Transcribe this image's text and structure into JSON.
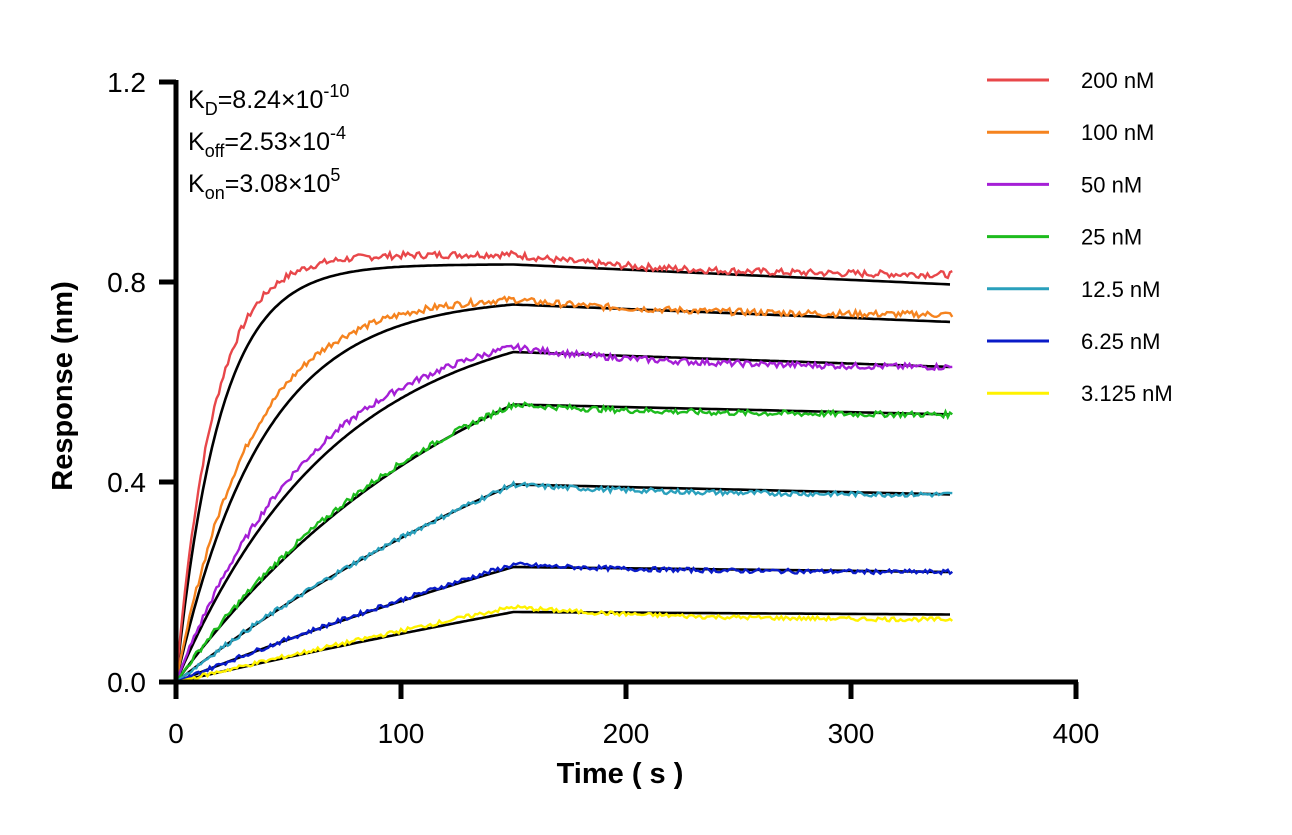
{
  "chart_data": {
    "type": "line",
    "title": "",
    "xlabel": "Time ( s )",
    "ylabel": "Response (nm)",
    "xlim": [
      0,
      400
    ],
    "ylim": [
      0,
      1.2
    ],
    "x_ticks": [
      0,
      100,
      200,
      300,
      400
    ],
    "y_ticks": [
      0.0,
      0.4,
      0.8,
      1.2
    ],
    "x_tick_labels": [
      "0",
      "100",
      "200",
      "300",
      "400"
    ],
    "y_tick_labels": [
      "0.0",
      "0.4",
      "0.8",
      "1.2"
    ],
    "grid": false,
    "legend_position": "right",
    "association_end": 150,
    "dissociation_end": 345,
    "fit_color": "#000000",
    "annotations": {
      "kd": {
        "base": "K",
        "sub": "D",
        "mant": "=8.24×10",
        "exp": "-10"
      },
      "koff": {
        "base": "K",
        "sub": "off",
        "mant": "=2.53×10",
        "exp": "-4"
      },
      "kon": {
        "base": "K",
        "sub": "on",
        "mant": "=3.08×10",
        "exp": "5"
      }
    },
    "series": [
      {
        "name": "200 nM",
        "color": "#E8474A",
        "peak": 0.855,
        "end": 0.815,
        "fit_peak": 0.835,
        "fit_end": 0.795,
        "k": 0.06
      },
      {
        "name": "100 nM",
        "color": "#F5831F",
        "peak": 0.765,
        "end": 0.735,
        "fit_peak": 0.755,
        "fit_end": 0.72,
        "k": 0.03
      },
      {
        "name": "50 nM",
        "color": "#A51FD6",
        "peak": 0.67,
        "end": 0.63,
        "fit_peak": 0.66,
        "fit_end": 0.63,
        "k": 0.016
      },
      {
        "name": "25 nM",
        "color": "#1DBB1D",
        "peak": 0.555,
        "end": 0.535,
        "fit_peak": 0.555,
        "fit_end": 0.535,
        "k": 0.008
      },
      {
        "name": "12.5 nM",
        "color": "#2AA0BC",
        "peak": 0.395,
        "end": 0.375,
        "fit_peak": 0.395,
        "fit_end": 0.375,
        "k": 0.004
      },
      {
        "name": "6.25 nM",
        "color": "#0A1BC8",
        "peak": 0.235,
        "end": 0.22,
        "fit_peak": 0.23,
        "fit_end": 0.22,
        "k": 0.002
      },
      {
        "name": "3.125 nM",
        "color": "#FFF200",
        "peak": 0.15,
        "end": 0.125,
        "fit_peak": 0.14,
        "fit_end": 0.135,
        "k": 0.001
      }
    ]
  }
}
